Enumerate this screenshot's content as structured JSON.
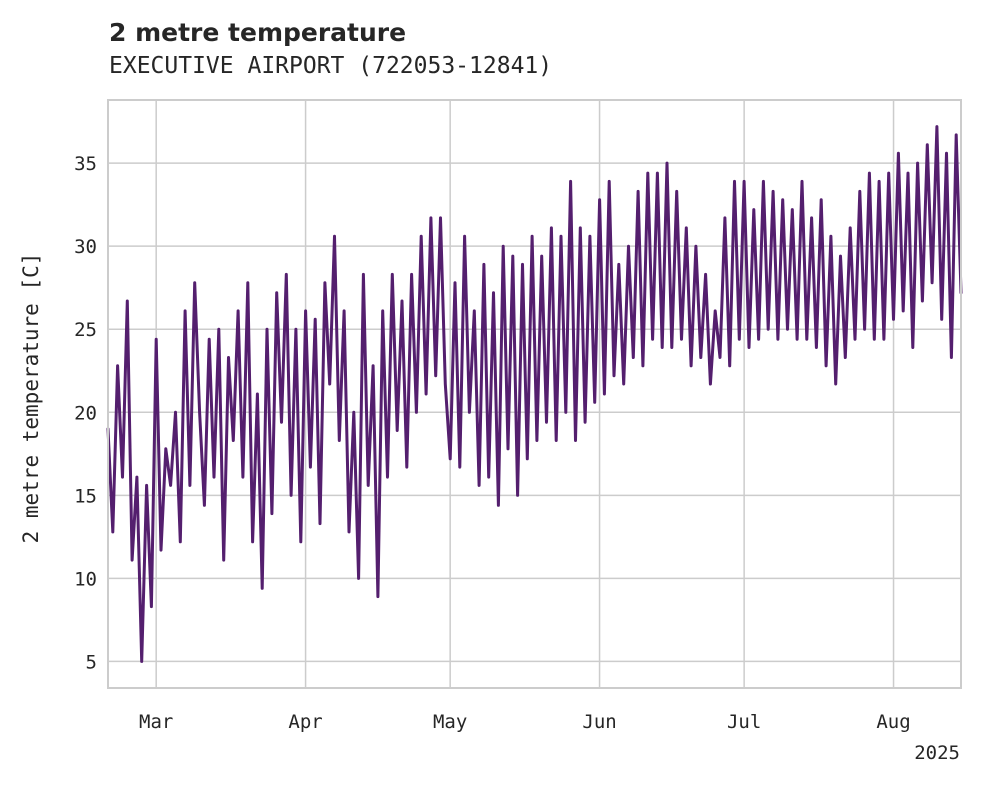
{
  "chart_data": {
    "type": "line",
    "title": "2 metre temperature",
    "subtitle": "EXECUTIVE AIRPORT (722053-12841)",
    "ylabel": "2 metre temperature [C]",
    "xlabel": "",
    "year_label": "2025",
    "xlim": [
      "2025-02-19",
      "2025-08-15"
    ],
    "ylim": [
      3.4,
      38.8
    ],
    "x_ticks": [
      {
        "date": "2025-03-01",
        "label": "Mar"
      },
      {
        "date": "2025-04-01",
        "label": "Apr"
      },
      {
        "date": "2025-05-01",
        "label": "May"
      },
      {
        "date": "2025-06-01",
        "label": "Jun"
      },
      {
        "date": "2025-07-01",
        "label": "Jul"
      },
      {
        "date": "2025-08-01",
        "label": "Aug"
      }
    ],
    "y_ticks": [
      5,
      10,
      15,
      20,
      25,
      30,
      35
    ],
    "grid": true,
    "line_color": "#541f6e",
    "series": [
      {
        "name": "",
        "data": [
          [
            "2025-02-19",
            19.0
          ],
          [
            "2025-02-20",
            12.8
          ],
          [
            "2025-02-21",
            22.8
          ],
          [
            "2025-02-22",
            16.1
          ],
          [
            "2025-02-23",
            26.7
          ],
          [
            "2025-02-24",
            11.1
          ],
          [
            "2025-02-25",
            16.1
          ],
          [
            "2025-02-26",
            5.0
          ],
          [
            "2025-02-27",
            15.6
          ],
          [
            "2025-02-28",
            8.3
          ],
          [
            "2025-03-01",
            24.4
          ],
          [
            "2025-03-02",
            11.7
          ],
          [
            "2025-03-03",
            17.8
          ],
          [
            "2025-03-04",
            15.6
          ],
          [
            "2025-03-05",
            20.0
          ],
          [
            "2025-03-06",
            12.2
          ],
          [
            "2025-03-07",
            26.1
          ],
          [
            "2025-03-08",
            15.6
          ],
          [
            "2025-03-09",
            27.8
          ],
          [
            "2025-03-10",
            20.0
          ],
          [
            "2025-03-11",
            14.4
          ],
          [
            "2025-03-12",
            24.4
          ],
          [
            "2025-03-13",
            16.1
          ],
          [
            "2025-03-14",
            25.0
          ],
          [
            "2025-03-15",
            11.1
          ],
          [
            "2025-03-16",
            23.3
          ],
          [
            "2025-03-17",
            18.3
          ],
          [
            "2025-03-18",
            26.1
          ],
          [
            "2025-03-19",
            16.1
          ],
          [
            "2025-03-20",
            27.8
          ],
          [
            "2025-03-21",
            12.2
          ],
          [
            "2025-03-22",
            21.1
          ],
          [
            "2025-03-23",
            9.4
          ],
          [
            "2025-03-24",
            25.0
          ],
          [
            "2025-03-25",
            13.9
          ],
          [
            "2025-03-26",
            27.2
          ],
          [
            "2025-03-27",
            19.4
          ],
          [
            "2025-03-28",
            28.3
          ],
          [
            "2025-03-29",
            15.0
          ],
          [
            "2025-03-30",
            25.0
          ],
          [
            "2025-03-31",
            12.2
          ],
          [
            "2025-04-01",
            26.1
          ],
          [
            "2025-04-02",
            16.7
          ],
          [
            "2025-04-03",
            25.6
          ],
          [
            "2025-04-04",
            13.3
          ],
          [
            "2025-04-05",
            27.8
          ],
          [
            "2025-04-06",
            21.7
          ],
          [
            "2025-04-07",
            30.6
          ],
          [
            "2025-04-08",
            18.3
          ],
          [
            "2025-04-09",
            26.1
          ],
          [
            "2025-04-10",
            12.8
          ],
          [
            "2025-04-11",
            20.0
          ],
          [
            "2025-04-12",
            10.0
          ],
          [
            "2025-04-13",
            28.3
          ],
          [
            "2025-04-14",
            15.6
          ],
          [
            "2025-04-15",
            22.8
          ],
          [
            "2025-04-16",
            8.9
          ],
          [
            "2025-04-17",
            26.1
          ],
          [
            "2025-04-18",
            16.1
          ],
          [
            "2025-04-19",
            28.3
          ],
          [
            "2025-04-20",
            18.9
          ],
          [
            "2025-04-21",
            26.7
          ],
          [
            "2025-04-22",
            16.7
          ],
          [
            "2025-04-23",
            28.3
          ],
          [
            "2025-04-24",
            20.0
          ],
          [
            "2025-04-25",
            30.6
          ],
          [
            "2025-04-26",
            21.1
          ],
          [
            "2025-04-27",
            31.7
          ],
          [
            "2025-04-28",
            22.2
          ],
          [
            "2025-04-29",
            31.7
          ],
          [
            "2025-04-30",
            21.7
          ],
          [
            "2025-05-01",
            17.2
          ],
          [
            "2025-05-02",
            27.8
          ],
          [
            "2025-05-03",
            16.7
          ],
          [
            "2025-05-04",
            30.6
          ],
          [
            "2025-05-05",
            20.0
          ],
          [
            "2025-05-06",
            26.1
          ],
          [
            "2025-05-07",
            15.6
          ],
          [
            "2025-05-08",
            28.9
          ],
          [
            "2025-05-09",
            16.1
          ],
          [
            "2025-05-10",
            27.2
          ],
          [
            "2025-05-11",
            14.4
          ],
          [
            "2025-05-12",
            30.0
          ],
          [
            "2025-05-13",
            17.8
          ],
          [
            "2025-05-14",
            29.4
          ],
          [
            "2025-05-15",
            15.0
          ],
          [
            "2025-05-16",
            28.9
          ],
          [
            "2025-05-17",
            17.2
          ],
          [
            "2025-05-18",
            30.6
          ],
          [
            "2025-05-19",
            18.3
          ],
          [
            "2025-05-20",
            29.4
          ],
          [
            "2025-05-21",
            19.4
          ],
          [
            "2025-05-22",
            31.1
          ],
          [
            "2025-05-23",
            18.3
          ],
          [
            "2025-05-24",
            30.6
          ],
          [
            "2025-05-25",
            20.0
          ],
          [
            "2025-05-26",
            33.9
          ],
          [
            "2025-05-27",
            18.3
          ],
          [
            "2025-05-28",
            31.1
          ],
          [
            "2025-05-29",
            19.4
          ],
          [
            "2025-05-30",
            30.6
          ],
          [
            "2025-05-31",
            20.6
          ],
          [
            "2025-06-01",
            32.8
          ],
          [
            "2025-06-02",
            21.1
          ],
          [
            "2025-06-03",
            33.9
          ],
          [
            "2025-06-04",
            22.2
          ],
          [
            "2025-06-05",
            28.9
          ],
          [
            "2025-06-06",
            21.7
          ],
          [
            "2025-06-07",
            30.0
          ],
          [
            "2025-06-08",
            23.3
          ],
          [
            "2025-06-09",
            33.3
          ],
          [
            "2025-06-10",
            22.8
          ],
          [
            "2025-06-11",
            34.4
          ],
          [
            "2025-06-12",
            24.4
          ],
          [
            "2025-06-13",
            34.4
          ],
          [
            "2025-06-14",
            23.9
          ],
          [
            "2025-06-15",
            35.0
          ],
          [
            "2025-06-16",
            23.9
          ],
          [
            "2025-06-17",
            33.3
          ],
          [
            "2025-06-18",
            24.4
          ],
          [
            "2025-06-19",
            31.1
          ],
          [
            "2025-06-20",
            22.8
          ],
          [
            "2025-06-21",
            30.0
          ],
          [
            "2025-06-22",
            23.3
          ],
          [
            "2025-06-23",
            28.3
          ],
          [
            "2025-06-24",
            21.7
          ],
          [
            "2025-06-25",
            26.1
          ],
          [
            "2025-06-26",
            23.3
          ],
          [
            "2025-06-27",
            31.7
          ],
          [
            "2025-06-28",
            22.8
          ],
          [
            "2025-06-29",
            33.9
          ],
          [
            "2025-06-30",
            24.4
          ],
          [
            "2025-07-01",
            33.9
          ],
          [
            "2025-07-02",
            23.9
          ],
          [
            "2025-07-03",
            32.2
          ],
          [
            "2025-07-04",
            24.4
          ],
          [
            "2025-07-05",
            33.9
          ],
          [
            "2025-07-06",
            25.0
          ],
          [
            "2025-07-07",
            33.3
          ],
          [
            "2025-07-08",
            24.4
          ],
          [
            "2025-07-09",
            32.8
          ],
          [
            "2025-07-10",
            25.0
          ],
          [
            "2025-07-11",
            32.2
          ],
          [
            "2025-07-12",
            24.4
          ],
          [
            "2025-07-13",
            33.9
          ],
          [
            "2025-07-14",
            24.4
          ],
          [
            "2025-07-15",
            31.7
          ],
          [
            "2025-07-16",
            23.9
          ],
          [
            "2025-07-17",
            32.8
          ],
          [
            "2025-07-18",
            22.8
          ],
          [
            "2025-07-19",
            30.6
          ],
          [
            "2025-07-20",
            21.7
          ],
          [
            "2025-07-21",
            29.4
          ],
          [
            "2025-07-22",
            23.3
          ],
          [
            "2025-07-23",
            31.1
          ],
          [
            "2025-07-24",
            24.4
          ],
          [
            "2025-07-25",
            33.3
          ],
          [
            "2025-07-26",
            25.0
          ],
          [
            "2025-07-27",
            34.4
          ],
          [
            "2025-07-28",
            24.4
          ],
          [
            "2025-07-29",
            33.9
          ],
          [
            "2025-07-30",
            24.4
          ],
          [
            "2025-07-31",
            34.4
          ],
          [
            "2025-08-01",
            25.6
          ],
          [
            "2025-08-02",
            35.6
          ],
          [
            "2025-08-03",
            26.1
          ],
          [
            "2025-08-04",
            34.4
          ],
          [
            "2025-08-05",
            23.9
          ],
          [
            "2025-08-06",
            35.0
          ],
          [
            "2025-08-07",
            26.7
          ],
          [
            "2025-08-08",
            36.1
          ],
          [
            "2025-08-09",
            27.8
          ],
          [
            "2025-08-10",
            37.2
          ],
          [
            "2025-08-11",
            25.6
          ],
          [
            "2025-08-12",
            35.6
          ],
          [
            "2025-08-13",
            23.3
          ],
          [
            "2025-08-14",
            36.7
          ],
          [
            "2025-08-15",
            27.2
          ]
        ]
      }
    ]
  }
}
